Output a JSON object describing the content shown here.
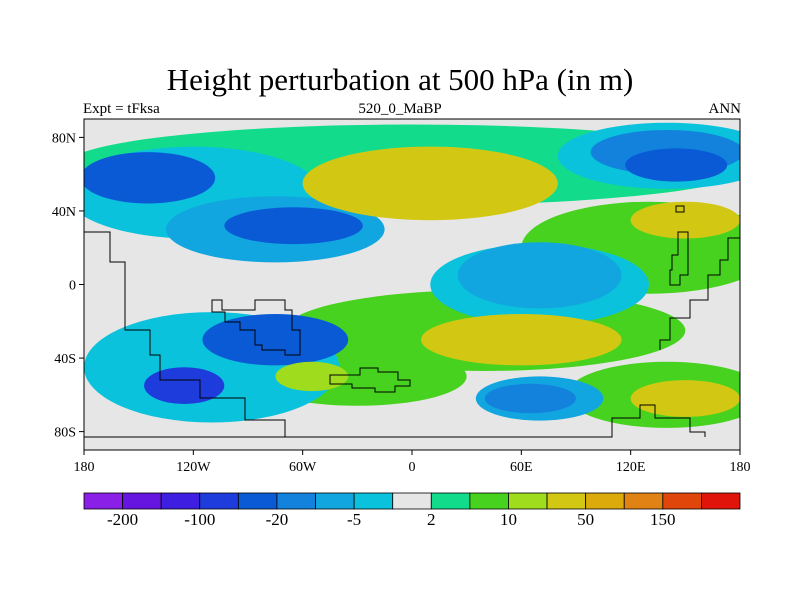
{
  "title": "Height perturbation at 500 hPa (in m)",
  "left_label": "Expt = tFksa",
  "center_label": "520_0_MaBP",
  "right_label": "ANN",
  "chart_data": {
    "type": "contour-map",
    "title": "Height perturbation at 500 hPa (in m)",
    "variable": "500 hPa geopotential height perturbation",
    "units": "m",
    "x_axis": {
      "range": [
        -180,
        180
      ],
      "ticks": [
        {
          "value": -180,
          "label": "180"
        },
        {
          "value": -120,
          "label": "120W"
        },
        {
          "value": -60,
          "label": "60W"
        },
        {
          "value": 0,
          "label": "0"
        },
        {
          "value": 60,
          "label": "60E"
        },
        {
          "value": 120,
          "label": "120E"
        },
        {
          "value": 180,
          "label": "180"
        }
      ]
    },
    "y_axis": {
      "range": [
        -90,
        90
      ],
      "ticks": [
        {
          "value": 80,
          "label": "80N"
        },
        {
          "value": 40,
          "label": "40N"
        },
        {
          "value": 0,
          "label": "0"
        },
        {
          "value": -40,
          "label": "40S"
        },
        {
          "value": -80,
          "label": "80S"
        }
      ]
    },
    "colorbar": {
      "colors": [
        "#8a1fe8",
        "#6614e0",
        "#3e1ee0",
        "#1e3cdc",
        "#0a5ad6",
        "#1282dc",
        "#12a6e0",
        "#0ac2dc",
        "#e6e6e6",
        "#12dc8c",
        "#46d21e",
        "#a0dc1e",
        "#d2c814",
        "#dcaa0a",
        "#e08214",
        "#e0460a",
        "#e0140a"
      ],
      "labels": [
        {
          "boundary": 1,
          "text": "-200"
        },
        {
          "boundary": 3,
          "text": "-100"
        },
        {
          "boundary": 5,
          "text": "-20"
        },
        {
          "boundary": 7,
          "text": "-5"
        },
        {
          "boundary": 9,
          "text": "2"
        },
        {
          "boundary": 11,
          "text": "10"
        },
        {
          "boundary": 13,
          "text": "50"
        },
        {
          "boundary": 15,
          "text": "150"
        }
      ]
    },
    "regions": [
      {
        "name": "deep-blue-arctic-pacific",
        "level": 4,
        "lon": -145,
        "lat": 58,
        "rx": 37,
        "ry": 14
      },
      {
        "name": "blue-arctic-east",
        "level": 5,
        "lon": 140,
        "lat": 72,
        "rx": 42,
        "ry": 12
      },
      {
        "name": "deep-blue-east-asia",
        "level": 4,
        "lon": 145,
        "lat": 65,
        "rx": 28,
        "ry": 9
      },
      {
        "name": "blue-north-atlantic",
        "level": 4,
        "lon": -65,
        "lat": 32,
        "rx": 38,
        "ry": 10
      },
      {
        "name": "deep-blue-south-pacific",
        "level": 3,
        "lon": -125,
        "lat": -55,
        "rx": 22,
        "ry": 10
      },
      {
        "name": "blue-south-america",
        "level": 4,
        "lon": -75,
        "lat": -30,
        "rx": 40,
        "ry": 14
      },
      {
        "name": "blue-south-indian",
        "level": 5,
        "lon": 65,
        "lat": -62,
        "rx": 25,
        "ry": 8
      },
      {
        "name": "cyan-africa",
        "level": 6,
        "lon": 70,
        "lat": 5,
        "rx": 45,
        "ry": 18
      },
      {
        "name": "yellow-north-atlantic-europe",
        "level": 12,
        "lon": 10,
        "lat": 55,
        "rx": 70,
        "ry": 20
      },
      {
        "name": "yellow-north-asia",
        "level": 12,
        "lon": 150,
        "lat": 35,
        "rx": 30,
        "ry": 10
      },
      {
        "name": "yellow-south-indian",
        "level": 12,
        "lon": 60,
        "lat": -30,
        "rx": 55,
        "ry": 14
      },
      {
        "name": "yellow-south-atlantic",
        "level": 11,
        "lon": -55,
        "lat": -50,
        "rx": 20,
        "ry": 8
      },
      {
        "name": "yellow-south-australia",
        "level": 12,
        "lon": 150,
        "lat": -62,
        "rx": 30,
        "ry": 10
      }
    ]
  }
}
